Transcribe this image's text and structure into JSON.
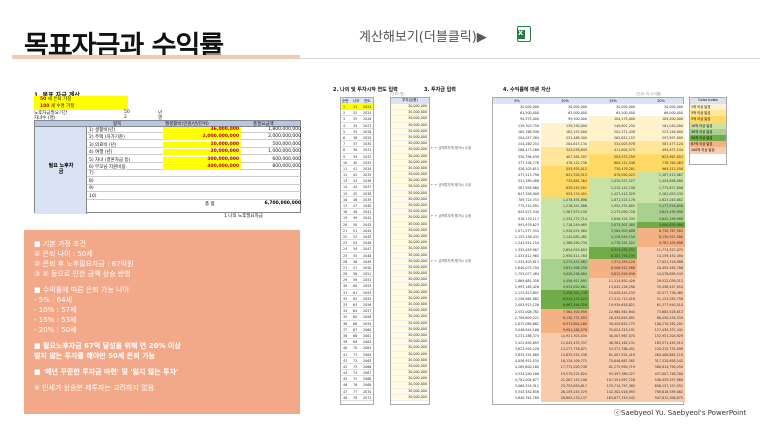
{
  "header": {
    "title": "목표자금과 수익률",
    "calc_link": "계산해보기(더블클릭)▶",
    "excel_icon": "excel-icon"
  },
  "section1": {
    "heading": "1. 목표 자금 계산",
    "assume": [
      {
        "num": "50",
        "text": "세 은퇴 가정"
      },
      {
        "num": "100",
        "text": "세 수명 가정"
      }
    ],
    "fields": [
      {
        "label": "노후자금필요기간",
        "value": "50",
        "unit": "년"
      },
      {
        "label": "자녀수 (명)",
        "value": "2",
        "unit": "명"
      }
    ],
    "table": {
      "headers": [
        "항목",
        "월생활비(만원/반/단위)",
        "총필요금액"
      ],
      "left_label": "필요 노후자금",
      "rows": [
        {
          "n": "1) 생활비(년)",
          "a": "36,000,000",
          "b": "1,800,000,000",
          "y": true
        },
        {
          "n": "2) 주택 (자가기준)",
          "a": "2,000,000,000",
          "b": "2,000,000,000",
          "y": true
        },
        {
          "n": "3) 의료비 (년)",
          "a": "10,000,000",
          "b": "500,000,000",
          "y": true
        },
        {
          "n": "4) 여행 (년)",
          "a": "20,000,000",
          "b": "1,000,000,000",
          "y": true
        },
        {
          "n": "5) 자녀 (결혼자금 등)",
          "a": "300,000,000",
          "b": "600,000,000",
          "y": true
        },
        {
          "n": "6) 부모님 지원비용",
          "a": "400,000,000",
          "b": "800,000,000",
          "y": true
        },
        {
          "n": "7)",
          "a": "",
          "b": "",
          "y": false
        },
        {
          "n": "8)",
          "a": "",
          "b": "",
          "y": false
        },
        {
          "n": "9)",
          "a": "",
          "b": "",
          "y": false
        },
        {
          "n": "10)",
          "a": "",
          "b": "",
          "y": false
        }
      ],
      "total_label": "총 합",
      "total_value": "6,700,000,000"
    },
    "note": "1 나의 노후필요자금"
  },
  "summary": {
    "lines": [
      {
        "text": "■ 기본 가정 조건",
        "bold": false
      },
      {
        "text": "   ① 은퇴 나이 : 50세",
        "bold": false
      },
      {
        "text": "   ② 은퇴 후 노후필요자금 : 67억원",
        "bold": false
      },
      {
        "text": "   ③ ④ 등으로 인한 금액 상승 반영",
        "bold": false
      },
      {
        "text": "■ 수익률에 따른 은퇴 가능 나이",
        "bold": false
      },
      {
        "text": "   - 5% : 64세",
        "bold": false
      },
      {
        "text": "   - 10% : 57세",
        "bold": false
      },
      {
        "text": "   - 15% : 53세",
        "bold": false
      },
      {
        "text": "   - 20% : 50세",
        "bold": false
      },
      {
        "text": "■ 필요노후자금 67억 달성을 위해 연 20% 이상",
        "bold": true
      },
      {
        "text": "   벌지 않는 투자를 해야만 50세 은퇴 가능",
        "bold": true
      },
      {
        "text": "■ '매년 꾸준한 투자금 마련' 및 '잃지 않는 투자'",
        "bold": true
      },
      {
        "text": "※ 인세가 상승분 제투자는 고려하지 않음.",
        "bold": false
      }
    ]
  },
  "sections": {
    "s2": "2. 나의 및 투자시작 연도 입력",
    "s3": "3. 투자금 입력",
    "s4": "4. 수익률에 따른 자산"
  },
  "table2": {
    "headers": [
      "순번",
      "나이",
      "연도"
    ],
    "rows": [
      [
        "1",
        "31",
        "2024"
      ],
      [
        "2",
        "32",
        "2025"
      ],
      [
        "3",
        "33",
        "2026"
      ],
      [
        "4",
        "34",
        "2027"
      ],
      [
        "5",
        "35",
        "2028"
      ],
      [
        "6",
        "36",
        "2029"
      ],
      [
        "7",
        "37",
        "2030"
      ],
      [
        "8",
        "38",
        "2031"
      ],
      [
        "9",
        "39",
        "2032"
      ],
      [
        "10",
        "40",
        "2033"
      ],
      [
        "11",
        "41",
        "2034"
      ],
      [
        "12",
        "42",
        "2035"
      ],
      [
        "13",
        "43",
        "2036"
      ],
      [
        "14",
        "44",
        "2037"
      ],
      [
        "15",
        "45",
        "2038"
      ],
      [
        "16",
        "46",
        "2039"
      ],
      [
        "17",
        "47",
        "2040"
      ],
      [
        "18",
        "48",
        "2041"
      ],
      [
        "19",
        "49",
        "2042"
      ],
      [
        "20",
        "50",
        "2043"
      ],
      [
        "21",
        "51",
        "2044"
      ],
      [
        "22",
        "52",
        "2045"
      ],
      [
        "23",
        "53",
        "2046"
      ],
      [
        "24",
        "54",
        "2047"
      ],
      [
        "25",
        "55",
        "2048"
      ],
      [
        "26",
        "56",
        "2049"
      ],
      [
        "27",
        "57",
        "2050"
      ],
      [
        "28",
        "58",
        "2051"
      ],
      [
        "29",
        "59",
        "2052"
      ],
      [
        "30",
        "60",
        "2053"
      ],
      [
        "31",
        "61",
        "2054"
      ],
      [
        "32",
        "62",
        "2055"
      ],
      [
        "33",
        "63",
        "2056"
      ],
      [
        "34",
        "64",
        "2057"
      ],
      [
        "35",
        "65",
        "2058"
      ],
      [
        "36",
        "66",
        "2059"
      ],
      [
        "37",
        "67",
        "2060"
      ],
      [
        "38",
        "68",
        "2061"
      ],
      [
        "39",
        "69",
        "2062"
      ],
      [
        "40",
        "70",
        "2063"
      ],
      [
        "41",
        "71",
        "2064"
      ],
      [
        "42",
        "72",
        "2065"
      ],
      [
        "43",
        "73",
        "2066"
      ],
      [
        "44",
        "74",
        "2067"
      ],
      [
        "45",
        "75",
        "2068"
      ],
      [
        "46",
        "76",
        "2069"
      ],
      [
        "47",
        "77",
        "2070"
      ],
      [
        "48",
        "78",
        "2071"
      ]
    ]
  },
  "table3": {
    "top": "(단위: 원)",
    "header": "투자금(원)",
    "values": [
      "30,000,000",
      "30,000,000",
      "30,000,000",
      "30,000,000",
      "30,000,000",
      "30,000,000",
      "30,000,000",
      "30,000,000",
      "30,000,000",
      "30,000,000",
      "30,000,000",
      "30,000,000",
      "30,000,000",
      "30,000,000",
      "30,000,000",
      "30,000,000",
      "30,000,000",
      "30,000,000",
      "30,000,000",
      "30,000,000",
      "30,000,000",
      "30,000,000",
      "30,000,000",
      "30,000,000",
      "30,000,000",
      "30,000,000",
      "30,000,000",
      "30,000,000",
      "30,000,000",
      "30,000,000",
      "30,000,000",
      "30,000,000",
      "30,000,000",
      "30,000,000",
      "30,000,000",
      "30,000,000",
      "30,000,000",
      "30,000,000",
      "30,000,000",
      "30,000,000",
      "30,000,000",
      "30,000,000",
      "30,000,000",
      "30,000,000",
      "30,000,000",
      "30,000,000",
      "30,000,000",
      "30,000,000"
    ],
    "notes": [
      "← 금액투자액 평가시 수정",
      "← 금액투자액 평가시 수정",
      "← 금액투자액 평가시 수정",
      "← 금액투자액 평가시 수정"
    ]
  },
  "table4": {
    "top": "(단위: 억 수익률)",
    "headers": [
      "5%",
      "10%",
      "15%",
      "20%"
    ],
    "rows": [
      [
        "30,000,000",
        "30,000,000",
        "30,000,000",
        "30,000,000"
      ],
      [
        "61,500,000",
        "63,000,000",
        "64,500,000",
        "66,000,000"
      ],
      [
        "94,575,000",
        "99,300,000",
        "104,175,000",
        "109,200,000"
      ],
      [
        "129,303,750",
        "139,230,000",
        "149,801,250",
        "161,040,000"
      ],
      [
        "165,768,938",
        "183,153,000",
        "202,271,438",
        "223,248,000"
      ],
      [
        "204,057,384",
        "231,468,300",
        "262,612,153",
        "297,897,600"
      ],
      [
        "244,260,254",
        "284,615,130",
        "332,003,976",
        "387,477,120"
      ],
      [
        "286,473,266",
        "343,076,643",
        "411,804,573",
        "494,972,544"
      ],
      [
        "330,796,930",
        "407,384,307",
        "503,575,259",
        "623,967,053"
      ],
      [
        "377,336,776",
        "478,122,738",
        "609,111,548",
        "778,760,463"
      ],
      [
        "426,203,615",
        "555,935,012",
        "730,478,281",
        "964,512,556"
      ],
      [
        "477,513,796",
        "641,528,513",
        "870,050,023",
        "1,187,415,067"
      ],
      [
        "531,389,486",
        "735,681,364",
        "1,030,557,527",
        "1,454,898,080"
      ],
      [
        "587,958,960",
        "839,249,501",
        "1,215,141,156",
        "1,775,877,696"
      ],
      [
        "647,356,908",
        "953,174,451",
        "1,427,412,329",
        "2,161,053,235"
      ],
      [
        "709,724,753",
        "1,078,491,896",
        "1,671,524,178",
        "2,623,263,882"
      ],
      [
        "775,210,991",
        "1,216,341,086",
        "1,952,252,805",
        "3,177,916,658"
      ],
      [
        "843,971,540",
        "1,367,975,194",
        "2,275,090,726",
        "3,843,499,990"
      ],
      [
        "916,170,117",
        "1,534,772,714",
        "2,646,354,335",
        "4,642,199,988"
      ],
      [
        "991,978,623",
        "1,718,249,985",
        "3,073,307,485",
        "5,600,639,986"
      ],
      [
        "1,071,577,554",
        "1,920,074,984",
        "3,564,303,608",
        "6,750,767,983"
      ],
      [
        "1,155,156,432",
        "2,142,082,482",
        "4,128,949,150",
        "8,130,921,580"
      ],
      [
        "1,242,914,254",
        "2,386,290,730",
        "4,778,291,522",
        "9,787,105,896"
      ],
      [
        "1,335,059,967",
        "2,654,919,803",
        "5,525,035,251",
        "11,774,527,075"
      ],
      [
        "1,431,812,965",
        "2,950,411,784",
        "6,383,790,539",
        "14,159,432,490"
      ],
      [
        "1,533,403,613",
        "3,275,452,962",
        "7,371,359,120",
        "17,021,318,988"
      ],
      [
        "1,640,073,794",
        "3,632,998,258",
        "8,506,912,988",
        "20,455,582,786"
      ],
      [
        "1,752,077,484",
        "4,026,298,084",
        "9,812,949,936",
        "24,576,699,343"
      ],
      [
        "1,869,681,358",
        "4,458,927,892",
        "11,314,892,426",
        "29,522,039,212"
      ],
      [
        "1,993,165,426",
        "4,934,820,681",
        "13,042,126,290",
        "35,456,447,054"
      ],
      [
        "2,122,823,697",
        "5,458,302,749",
        "15,028,445,233",
        "42,577,736,465"
      ],
      [
        "2,258,964,882",
        "6,034,133,024",
        "17,312,712,018",
        "51,123,283,758"
      ],
      [
        "2,401,913,126",
        "6,667,546,326",
        "19,939,618,821",
        "61,377,940,510"
      ],
      [
        "2,552,008,782",
        "7,364,300,959",
        "22,960,561,644",
        "73,683,528,612"
      ],
      [
        "2,709,609,221",
        "8,130,731,055",
        "26,434,645,891",
        "88,450,234,334"
      ],
      [
        "2,875,089,682",
        "8,973,804,160",
        "30,429,842,775",
        "106,170,281,201"
      ],
      [
        "3,048,844,166",
        "9,901,184,576",
        "35,024,319,191",
        "127,434,337,441"
      ],
      [
        "3,231,286,374",
        "10,921,303,034",
        "40,307,967,070",
        "152,951,204,929"
      ],
      [
        "3,422,850,693",
        "12,043,433,337",
        "46,384,162,131",
        "183,571,445,915"
      ],
      [
        "3,623,993,228",
        "13,277,776,671",
        "53,371,786,451",
        "220,315,735,098"
      ],
      [
        "3,835,192,889",
        "14,635,554,338",
        "61,407,554,419",
        "264,408,882,118"
      ],
      [
        "4,056,952,534",
        "16,129,109,772",
        "70,648,687,582",
        "317,320,658,542"
      ],
      [
        "4,289,800,160",
        "17,772,020,749",
        "81,275,990,719",
        "380,814,790,250"
      ],
      [
        "4,534,290,168",
        "19,579,222,824",
        "93,497,389,327",
        "457,007,748,300"
      ],
      [
        "4,791,004,677",
        "21,567,145,106",
        "107,551,997,726",
        "548,439,297,960"
      ],
      [
        "5,060,554,911",
        "23,753,859,617",
        "123,714,797,385",
        "658,157,157,552"
      ],
      [
        "5,343,582,656",
        "26,159,245,579",
        "142,302,016,993",
        "789,818,589,062"
      ],
      [
        "5,640,761,789",
        "28,805,170,137",
        "163,677,319,542",
        "947,812,306,875"
      ]
    ]
  },
  "legend": {
    "header": "Color index",
    "items": [
      {
        "label": "1억 이상 달성",
        "color": "#fff2cc"
      },
      {
        "label": "3억 이상 달성",
        "color": "#ffe699"
      },
      {
        "label": "5억 이상 달성",
        "color": "#ffd966"
      },
      {
        "label": "10억 이상 달성",
        "color": "#c9e3a6"
      },
      {
        "label": "30억 이상 달성",
        "color": "#a9d18e"
      },
      {
        "label": "50억 이상 달성",
        "color": "#70ad47"
      },
      {
        "label": "67억 이상 달성",
        "color": "#f4b183"
      },
      {
        "label": "100억 이상 달성",
        "color": "#f8cbad"
      }
    ]
  },
  "credit": "ⓒSaebyeol Yu. Saebyeol's PowerPoint"
}
